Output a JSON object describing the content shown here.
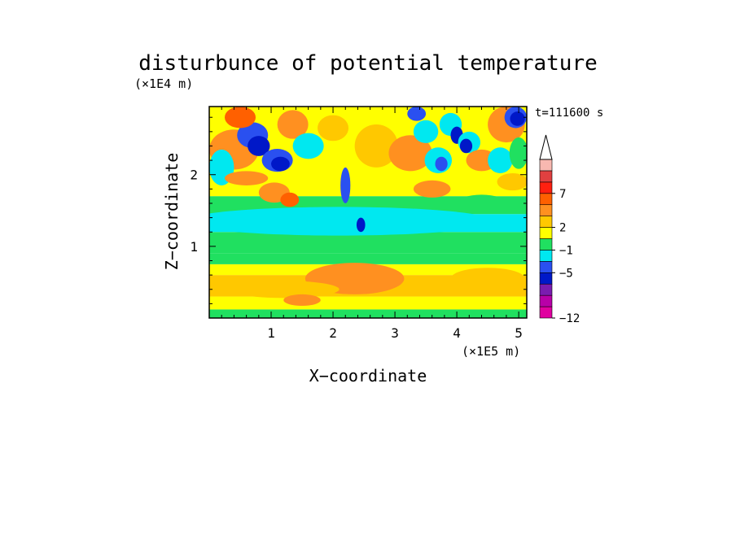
{
  "chart_data": {
    "type": "heatmap",
    "title": "disturbunce of potential temperature",
    "xlabel": "X−coordinate",
    "ylabel": "Z−coordinate",
    "x_unit": "(×1E5 m)",
    "y_unit": "(×1E4 m)",
    "time_label": "t=111600 s",
    "xlim": [
      0,
      5.13
    ],
    "ylim": [
      0,
      2.95
    ],
    "x_ticks": [
      {
        "value": 1,
        "label": "1"
      },
      {
        "value": 2,
        "label": "2"
      },
      {
        "value": 3,
        "label": "3"
      },
      {
        "value": 4,
        "label": "4"
      },
      {
        "value": 5,
        "label": "5"
      }
    ],
    "y_ticks": [
      {
        "value": 1,
        "label": "1"
      },
      {
        "value": 2,
        "label": "2"
      }
    ],
    "colorbar": {
      "extend_top": true,
      "colors": [
        "#e000a0",
        "#b800a8",
        "#7a1cb0",
        "#0018c8",
        "#2a50f0",
        "#00e8f0",
        "#20e060",
        "#ffff00",
        "#ffc800",
        "#ff9020",
        "#ff6000",
        "#ff2010",
        "#e04040",
        "#f8b8b0"
      ],
      "tick_labels": [
        {
          "level": 0,
          "label": "−12"
        },
        {
          "level": 4,
          "label": "−5"
        },
        {
          "level": 6,
          "label": "−1"
        },
        {
          "level": 8,
          "label": "2"
        },
        {
          "level": 11,
          "label": "7"
        }
      ]
    },
    "field_bands": [
      {
        "z_min": 0.0,
        "z_max": 0.12,
        "color_index": 6
      },
      {
        "z_min": 0.12,
        "z_max": 0.3,
        "color_index": 7
      },
      {
        "z_min": 0.3,
        "z_max": 0.6,
        "color_index": 8
      },
      {
        "z_min": 0.6,
        "z_max": 0.75,
        "color_index": 7
      },
      {
        "z_min": 0.75,
        "z_max": 0.9,
        "color_index": 6
      },
      {
        "z_min": 0.9,
        "z_max": 1.2,
        "color_index": 6
      },
      {
        "z_min": 1.2,
        "z_max": 1.45,
        "color_index": 5
      },
      {
        "z_min": 1.45,
        "z_max": 1.7,
        "color_index": 6
      },
      {
        "z_min": 1.7,
        "z_max": 2.95,
        "color_index": 7
      }
    ],
    "features": [
      {
        "x": 2.1,
        "z": 1.35,
        "rx": 2.5,
        "rz": 0.2,
        "color_index": 5
      },
      {
        "x": 2.35,
        "z": 0.55,
        "rx": 0.8,
        "rz": 0.22,
        "color_index": 9
      },
      {
        "x": 1.2,
        "z": 0.4,
        "rx": 0.9,
        "rz": 0.12,
        "color_index": 8
      },
      {
        "x": 4.5,
        "z": 0.55,
        "rx": 0.6,
        "rz": 0.15,
        "color_index": 8
      },
      {
        "x": 1.5,
        "z": 0.25,
        "rx": 0.3,
        "rz": 0.08,
        "color_index": 9
      },
      {
        "x": 0.4,
        "z": 2.35,
        "rx": 0.4,
        "rz": 0.28,
        "color_index": 9
      },
      {
        "x": 0.2,
        "z": 2.1,
        "rx": 0.2,
        "rz": 0.25,
        "color_index": 5
      },
      {
        "x": 0.7,
        "z": 2.55,
        "rx": 0.25,
        "rz": 0.18,
        "color_index": 4
      },
      {
        "x": 0.8,
        "z": 2.4,
        "rx": 0.18,
        "rz": 0.14,
        "color_index": 3
      },
      {
        "x": 1.1,
        "z": 2.2,
        "rx": 0.25,
        "rz": 0.16,
        "color_index": 4
      },
      {
        "x": 1.15,
        "z": 2.15,
        "rx": 0.15,
        "rz": 0.1,
        "color_index": 3
      },
      {
        "x": 0.5,
        "z": 2.8,
        "rx": 0.25,
        "rz": 0.15,
        "color_index": 10
      },
      {
        "x": 1.35,
        "z": 2.7,
        "rx": 0.25,
        "rz": 0.2,
        "color_index": 9
      },
      {
        "x": 1.6,
        "z": 2.4,
        "rx": 0.25,
        "rz": 0.18,
        "color_index": 5
      },
      {
        "x": 1.05,
        "z": 1.75,
        "rx": 0.25,
        "rz": 0.14,
        "color_index": 9
      },
      {
        "x": 1.3,
        "z": 1.65,
        "rx": 0.15,
        "rz": 0.1,
        "color_index": 10
      },
      {
        "x": 2.2,
        "z": 1.85,
        "rx": 0.08,
        "rz": 0.25,
        "color_index": 4
      },
      {
        "x": 2.45,
        "z": 1.3,
        "rx": 0.07,
        "rz": 0.1,
        "color_index": 3
      },
      {
        "x": 2.7,
        "z": 2.4,
        "rx": 0.35,
        "rz": 0.3,
        "color_index": 8
      },
      {
        "x": 3.25,
        "z": 2.3,
        "rx": 0.35,
        "rz": 0.25,
        "color_index": 9
      },
      {
        "x": 3.5,
        "z": 2.6,
        "rx": 0.2,
        "rz": 0.16,
        "color_index": 5
      },
      {
        "x": 3.35,
        "z": 2.85,
        "rx": 0.15,
        "rz": 0.1,
        "color_index": 4
      },
      {
        "x": 3.7,
        "z": 2.2,
        "rx": 0.22,
        "rz": 0.18,
        "color_index": 5
      },
      {
        "x": 3.75,
        "z": 2.15,
        "rx": 0.1,
        "rz": 0.1,
        "color_index": 4
      },
      {
        "x": 3.9,
        "z": 2.7,
        "rx": 0.18,
        "rz": 0.16,
        "color_index": 5
      },
      {
        "x": 4.0,
        "z": 2.55,
        "rx": 0.1,
        "rz": 0.12,
        "color_index": 3
      },
      {
        "x": 4.2,
        "z": 2.45,
        "rx": 0.18,
        "rz": 0.15,
        "color_index": 5
      },
      {
        "x": 4.15,
        "z": 2.4,
        "rx": 0.1,
        "rz": 0.1,
        "color_index": 3
      },
      {
        "x": 3.6,
        "z": 1.8,
        "rx": 0.3,
        "rz": 0.12,
        "color_index": 9
      },
      {
        "x": 4.4,
        "z": 2.2,
        "rx": 0.25,
        "rz": 0.15,
        "color_index": 9
      },
      {
        "x": 4.8,
        "z": 2.7,
        "rx": 0.3,
        "rz": 0.25,
        "color_index": 9
      },
      {
        "x": 4.95,
        "z": 2.8,
        "rx": 0.18,
        "rz": 0.15,
        "color_index": 4
      },
      {
        "x": 4.98,
        "z": 2.78,
        "rx": 0.12,
        "rz": 0.1,
        "color_index": 3
      },
      {
        "x": 4.7,
        "z": 2.2,
        "rx": 0.2,
        "rz": 0.18,
        "color_index": 5
      },
      {
        "x": 5.0,
        "z": 2.3,
        "rx": 0.15,
        "rz": 0.22,
        "color_index": 6
      },
      {
        "x": 4.4,
        "z": 1.6,
        "rx": 0.4,
        "rz": 0.12,
        "color_index": 6
      },
      {
        "x": 0.6,
        "z": 1.95,
        "rx": 0.35,
        "rz": 0.1,
        "color_index": 9
      },
      {
        "x": 2.0,
        "z": 2.65,
        "rx": 0.25,
        "rz": 0.18,
        "color_index": 8
      },
      {
        "x": 4.9,
        "z": 1.9,
        "rx": 0.25,
        "rz": 0.12,
        "color_index": 8
      }
    ]
  }
}
